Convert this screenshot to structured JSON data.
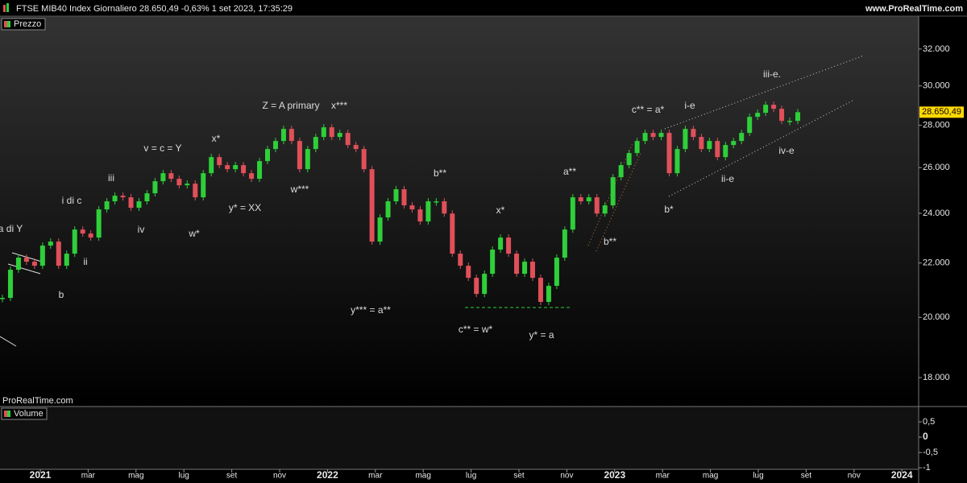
{
  "header": {
    "title": "FTSE MIB40 Index Giornaliero 28.650,49 -0,63% 1 set 2023, 17:35:29",
    "site": "www.ProRealTime.com"
  },
  "chart_data": {
    "type": "candle",
    "watermark": "ProRealTime.com",
    "log_scale": true,
    "series": [
      {
        "name": "Prezzo",
        "color_up": "#2fcf3a",
        "color_down": "#e0505a",
        "values": [
          20695,
          21742,
          22207,
          22050,
          21895,
          22680,
          22840,
          21895,
          22363,
          23328,
          23164,
          23002,
          24165,
          24509,
          24752,
          24682,
          24233,
          24509,
          24856,
          25387,
          25747,
          25495,
          25209,
          25279,
          24682,
          25747,
          26483,
          26113,
          25929,
          26113,
          25747,
          25495,
          26298,
          26860,
          27241,
          27823,
          27241,
          25929,
          26860,
          27434,
          27902,
          27434,
          27628,
          27049,
          26860,
          25929,
          22840,
          23827,
          24509,
          25033,
          24336,
          24165,
          23659,
          24509,
          24509,
          23990,
          22363,
          21895,
          21436,
          20840,
          21589,
          22522,
          23002,
          22363,
          21589,
          22050,
          21436,
          20551,
          21137,
          22207,
          23328,
          24682,
          24509,
          24682,
          23990,
          24336,
          25567,
          26113,
          26671,
          27241,
          27628,
          27434,
          27628,
          25747,
          26860,
          27823,
          27434,
          26860,
          27241,
          26483,
          27049,
          27241,
          27628,
          28417,
          28618,
          29025,
          28820,
          28217,
          28217,
          28650
        ]
      }
    ],
    "last_price": {
      "value": 28650.49,
      "label": "28.650,49"
    },
    "ylim": [
      17110,
      33900
    ],
    "yticks": [
      {
        "value": 18000,
        "label": "18.000"
      },
      {
        "value": 20000,
        "label": "20.000"
      },
      {
        "value": 22000,
        "label": "22.000"
      },
      {
        "value": 24000,
        "label": "24.000"
      },
      {
        "value": 26000,
        "label": "26.000"
      },
      {
        "value": 28000,
        "label": "28.000"
      },
      {
        "value": 30000,
        "label": "30.000"
      },
      {
        "value": 32000,
        "label": "32.000"
      }
    ],
    "x_labels": [
      "2021",
      "mar",
      "mag",
      "lug",
      "set",
      "nov",
      "2022",
      "mar",
      "mag",
      "lug",
      "set",
      "nov",
      "2023",
      "mar",
      "mag",
      "lug",
      "set",
      "nov",
      "2024"
    ],
    "annotations": [
      "a di Y",
      "b",
      "ii",
      "i di c",
      "iii",
      "iv",
      "v = c = Y",
      "w*",
      "x*",
      "y* = XX",
      "Z = A primary",
      "x***",
      "w***",
      "y*** = a**",
      "b**",
      "x*",
      "c** = w*",
      "y* = a",
      "a**",
      "b**",
      "c** = a*",
      "i-e",
      "b*",
      "ii-e",
      "iii-e.",
      "iv-e"
    ],
    "volume": {
      "name": "Volume",
      "ylim": [
        -1.05,
        1.0
      ],
      "yticks": [
        {
          "value": 0.5,
          "label": "0,5"
        },
        0,
        {
          "value": -0.5,
          "label": "-0,5"
        },
        -1
      ]
    }
  }
}
